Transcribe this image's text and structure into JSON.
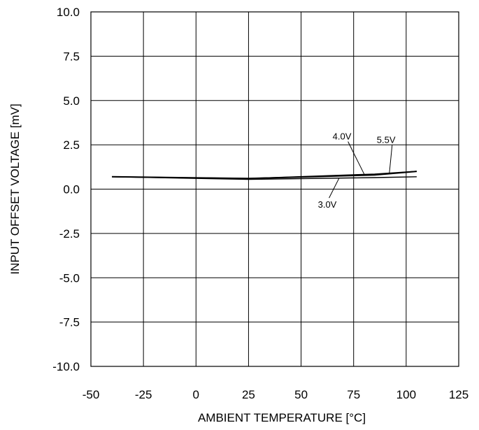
{
  "chart_data": {
    "type": "line",
    "title": "",
    "xlabel": "AMBIENT TEMPERATURE [°C]",
    "ylabel": "INPUT OFFSET VOLTAGE [mV]",
    "xlim": [
      -50,
      125
    ],
    "ylim": [
      -10,
      10
    ],
    "xticks": [
      -50,
      -25,
      0,
      25,
      50,
      75,
      100,
      125
    ],
    "yticks": [
      -10,
      -7.5,
      -5,
      -2.5,
      0,
      2.5,
      5,
      7.5,
      10
    ],
    "xtick_labels": [
      "-50",
      "-25",
      "0",
      "25",
      "50",
      "75",
      "100",
      "125"
    ],
    "ytick_labels": [
      "-10.0",
      "-7.5",
      "-5.0",
      "-2.5",
      "0.0",
      "2.5",
      "5.0",
      "7.5",
      "10.0"
    ],
    "grid": true,
    "legend": "none",
    "series": [
      {
        "name": "3.0V",
        "x": [
          -40,
          25,
          85,
          105
        ],
        "y": [
          0.7,
          0.55,
          0.65,
          0.7
        ]
      },
      {
        "name": "4.0V",
        "x": [
          -40,
          25,
          85,
          105
        ],
        "y": [
          0.7,
          0.6,
          0.8,
          1.0
        ]
      },
      {
        "name": "5.5V",
        "x": [
          -40,
          25,
          85,
          105
        ],
        "y": [
          0.7,
          0.6,
          0.85,
          1.0
        ]
      }
    ],
    "annotations": [
      {
        "text": "4.0V",
        "series": "4.0V",
        "x": 80,
        "y": 0.85,
        "label_x": 65,
        "label_y": 2.8
      },
      {
        "text": "5.5V",
        "series": "5.5V",
        "x": 92,
        "y": 0.9,
        "label_x": 86,
        "label_y": 2.6
      },
      {
        "text": "3.0V",
        "series": "3.0V",
        "x": 68,
        "y": 0.6,
        "label_x": 58,
        "label_y": -1.05
      }
    ]
  }
}
